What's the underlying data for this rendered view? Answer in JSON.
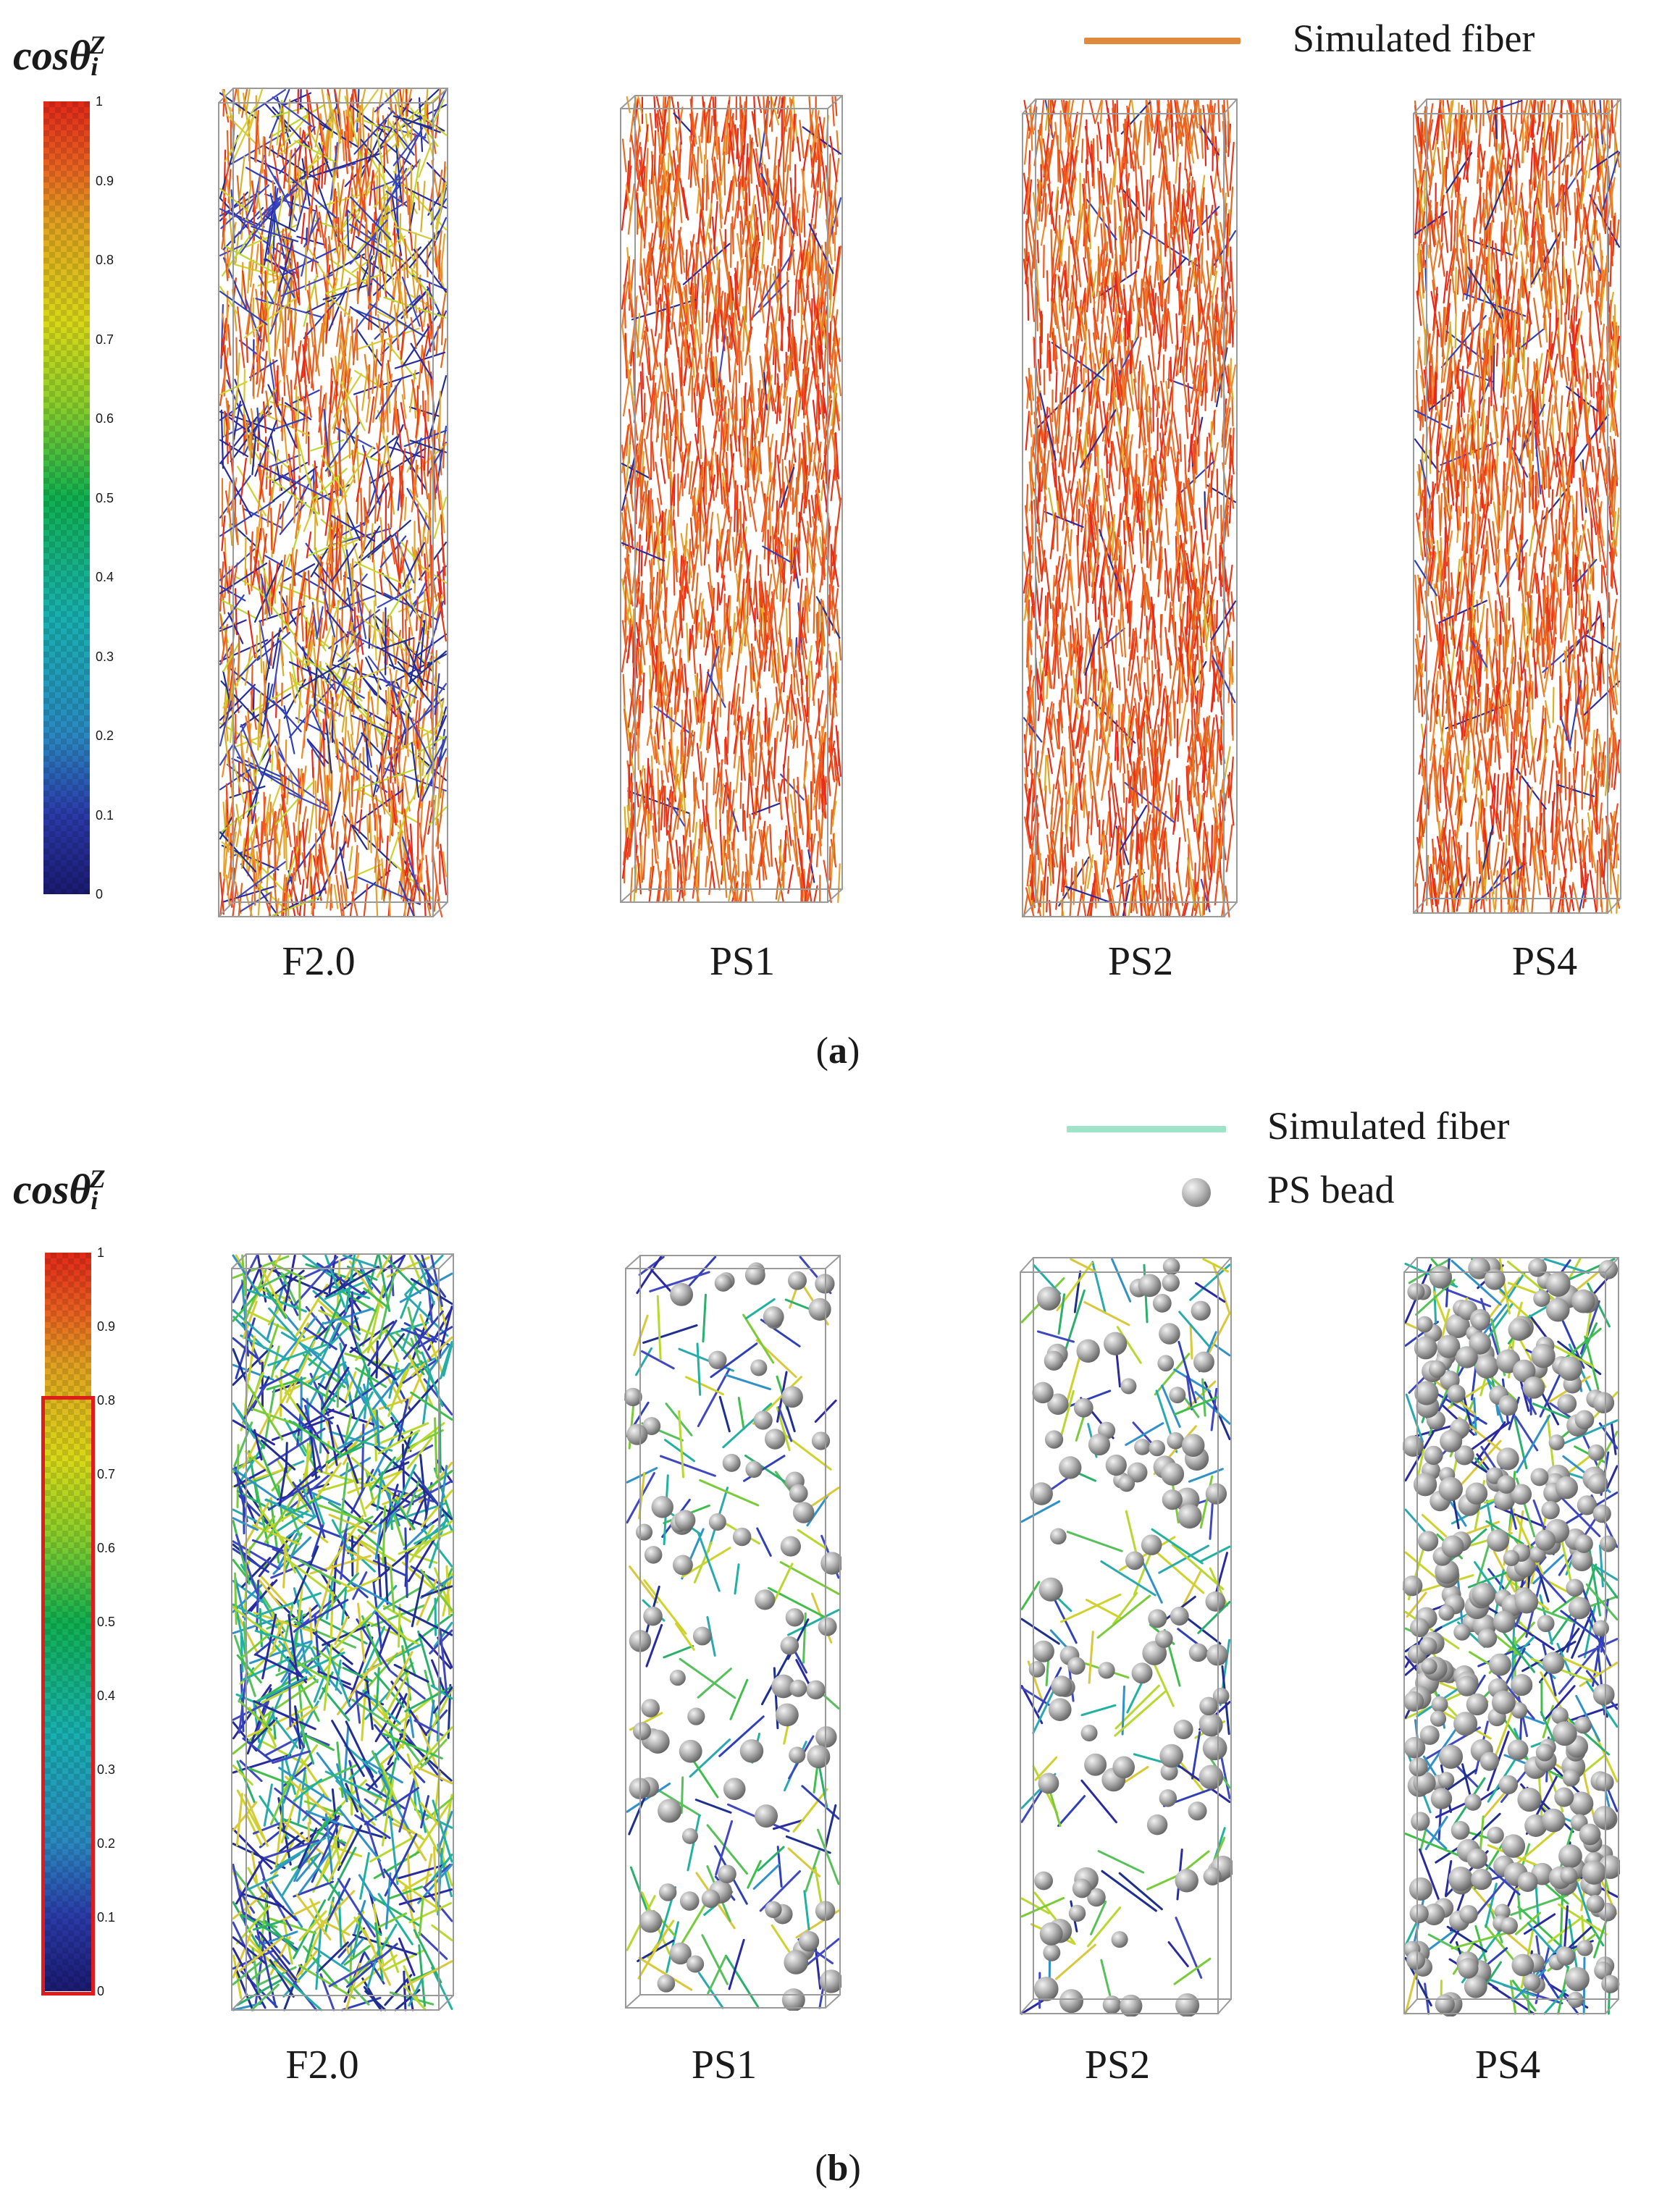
{
  "colors": {
    "orange_fiber": "#e08a3c",
    "teal_fiber": "#9fe3c8",
    "highlight": "#e01b1b"
  },
  "panel_a": {
    "legend_title": {
      "base": "cosθ",
      "sub": "i",
      "sup": "Z"
    },
    "ticks": [
      "1",
      "0.9",
      "0.8",
      "0.7",
      "0.6",
      "0.5",
      "0.4",
      "0.3",
      "0.2",
      "0.1",
      "0"
    ],
    "legend_fiber_label": "Simulated fiber",
    "specimens": [
      {
        "label": "F2.0",
        "fibers": 1800,
        "red_frac": 0.55,
        "blue_frac": 0.14
      },
      {
        "label": "PS1",
        "fibers": 1800,
        "red_frac": 0.85,
        "blue_frac": 0.02
      },
      {
        "label": "PS2",
        "fibers": 1800,
        "red_frac": 0.88,
        "blue_frac": 0.02
      },
      {
        "label": "PS4",
        "fibers": 1800,
        "red_frac": 0.78,
        "blue_frac": 0.03
      }
    ],
    "caption_open": "(",
    "caption_letter": "a",
    "caption_close": ")"
  },
  "panel_b": {
    "legend_title": {
      "base": "cosθ",
      "sub": "i",
      "sup": "Z"
    },
    "ticks": [
      "1",
      "0.9",
      "0.8",
      "0.7",
      "0.6",
      "0.5",
      "0.4",
      "0.3",
      "0.2",
      "0.1",
      "0"
    ],
    "legend_fiber_label": "Simulated fiber",
    "legend_bead_label": "PS bead",
    "highlight_range": [
      0,
      0.8
    ],
    "specimens": [
      {
        "label": "F2.0",
        "fibers": 900,
        "beads": 0
      },
      {
        "label": "PS1",
        "fibers": 150,
        "beads": 80
      },
      {
        "label": "PS2",
        "fibers": 140,
        "beads": 95
      },
      {
        "label": "PS4",
        "fibers": 380,
        "beads": 260
      }
    ],
    "caption_open": "(",
    "caption_letter": "b",
    "caption_close": ")"
  }
}
